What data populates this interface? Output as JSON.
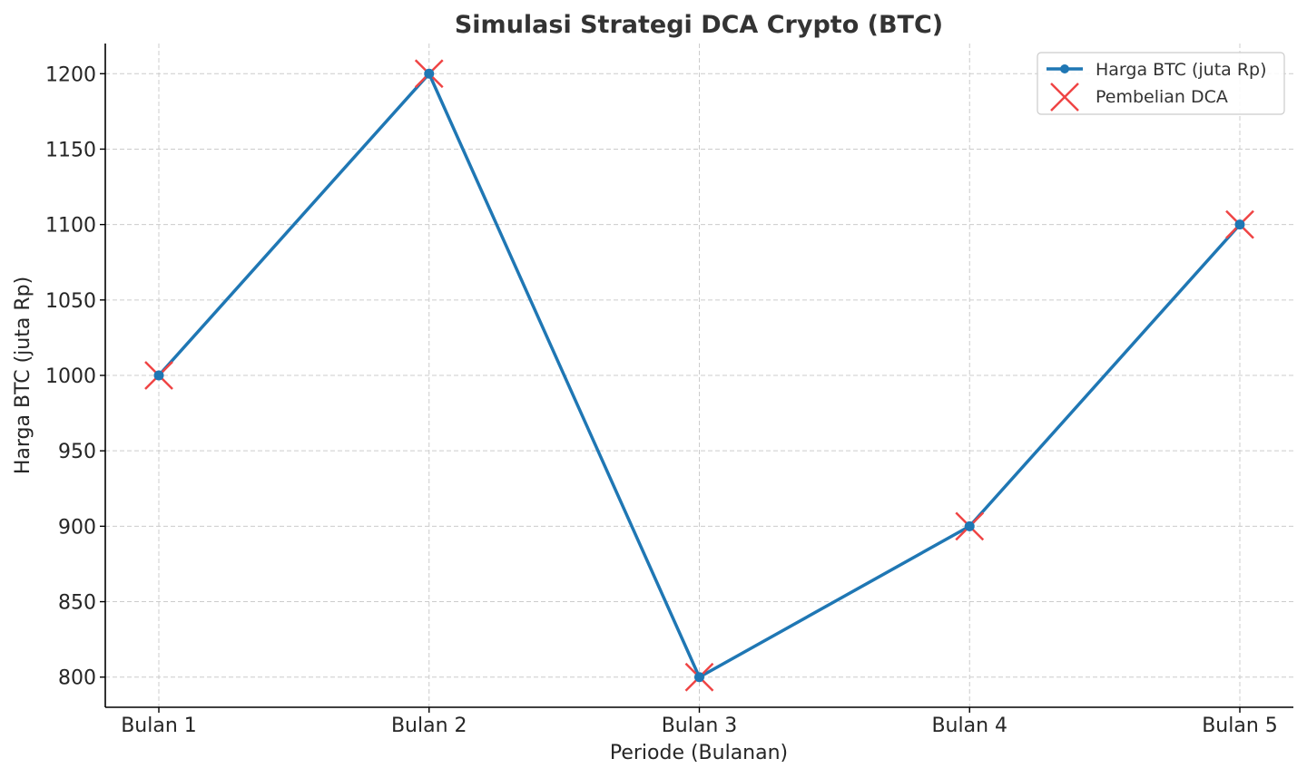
{
  "chart_data": {
    "type": "line",
    "title": "Simulasi Strategi DCA Crypto (BTC)",
    "xlabel": "Periode (Bulanan)",
    "ylabel": "Harga BTC (juta Rp)",
    "categories": [
      "Bulan 1",
      "Bulan 2",
      "Bulan 3",
      "Bulan 4",
      "Bulan 5"
    ],
    "series": [
      {
        "name": "Harga BTC (juta Rp)",
        "kind": "line-with-markers",
        "color": "#1f77b4",
        "values": [
          1000,
          1200,
          800,
          900,
          1100
        ]
      },
      {
        "name": "Pembelian DCA",
        "kind": "x-markers",
        "color": "#ef4444",
        "values": [
          1000,
          1200,
          800,
          900,
          1100
        ]
      }
    ],
    "ylim": [
      780,
      1220
    ],
    "yticks": [
      800,
      850,
      900,
      950,
      1000,
      1050,
      1100,
      1150,
      1200
    ],
    "grid": true,
    "legend_position": "top-right"
  }
}
